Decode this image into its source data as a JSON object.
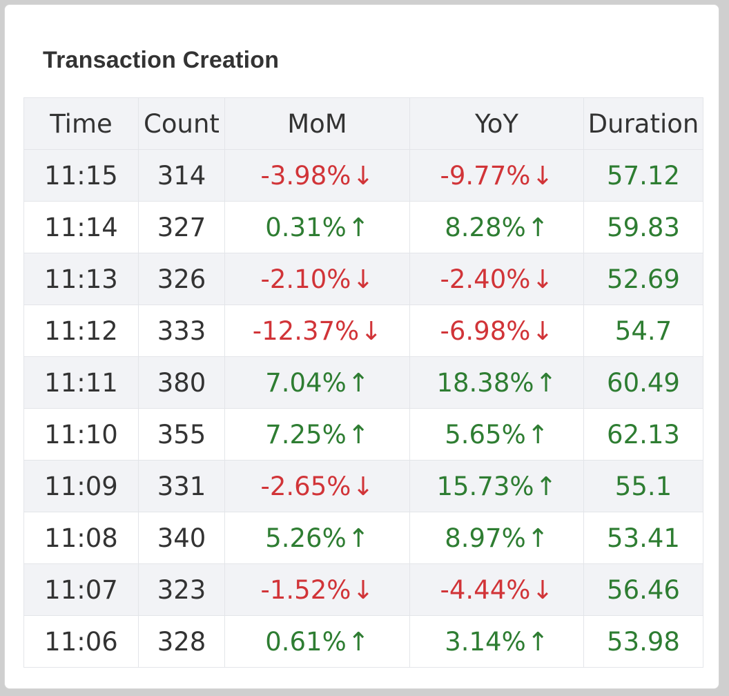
{
  "title": "Transaction Creation",
  "columns": [
    "Time",
    "Count",
    "MoM",
    "YoY",
    "Duration"
  ],
  "colors": {
    "negative": "#d13438",
    "positive": "#2e7d32",
    "text": "#333333",
    "stripe": "#f2f3f6"
  },
  "icons": {
    "down": "arrow-down-icon",
    "up": "arrow-up-icon"
  },
  "rows": [
    {
      "time": "11:15",
      "count": "314",
      "mom": {
        "text": "-3.98%",
        "dir": "down"
      },
      "yoy": {
        "text": "-9.77%",
        "dir": "down"
      },
      "duration": "57.12"
    },
    {
      "time": "11:14",
      "count": "327",
      "mom": {
        "text": "0.31%",
        "dir": "up"
      },
      "yoy": {
        "text": "8.28%",
        "dir": "up"
      },
      "duration": "59.83"
    },
    {
      "time": "11:13",
      "count": "326",
      "mom": {
        "text": "-2.10%",
        "dir": "down"
      },
      "yoy": {
        "text": "-2.40%",
        "dir": "down"
      },
      "duration": "52.69"
    },
    {
      "time": "11:12",
      "count": "333",
      "mom": {
        "text": "-12.37%",
        "dir": "down"
      },
      "yoy": {
        "text": "-6.98%",
        "dir": "down"
      },
      "duration": "54.7"
    },
    {
      "time": "11:11",
      "count": "380",
      "mom": {
        "text": "7.04%",
        "dir": "up"
      },
      "yoy": {
        "text": "18.38%",
        "dir": "up"
      },
      "duration": "60.49"
    },
    {
      "time": "11:10",
      "count": "355",
      "mom": {
        "text": "7.25%",
        "dir": "up"
      },
      "yoy": {
        "text": "5.65%",
        "dir": "up"
      },
      "duration": "62.13"
    },
    {
      "time": "11:09",
      "count": "331",
      "mom": {
        "text": "-2.65%",
        "dir": "down"
      },
      "yoy": {
        "text": "15.73%",
        "dir": "up"
      },
      "duration": "55.1"
    },
    {
      "time": "11:08",
      "count": "340",
      "mom": {
        "text": "5.26%",
        "dir": "up"
      },
      "yoy": {
        "text": "8.97%",
        "dir": "up"
      },
      "duration": "53.41"
    },
    {
      "time": "11:07",
      "count": "323",
      "mom": {
        "text": "-1.52%",
        "dir": "down"
      },
      "yoy": {
        "text": "-4.44%",
        "dir": "down"
      },
      "duration": "56.46"
    },
    {
      "time": "11:06",
      "count": "328",
      "mom": {
        "text": "0.61%",
        "dir": "up"
      },
      "yoy": {
        "text": "3.14%",
        "dir": "up"
      },
      "duration": "53.98"
    }
  ]
}
